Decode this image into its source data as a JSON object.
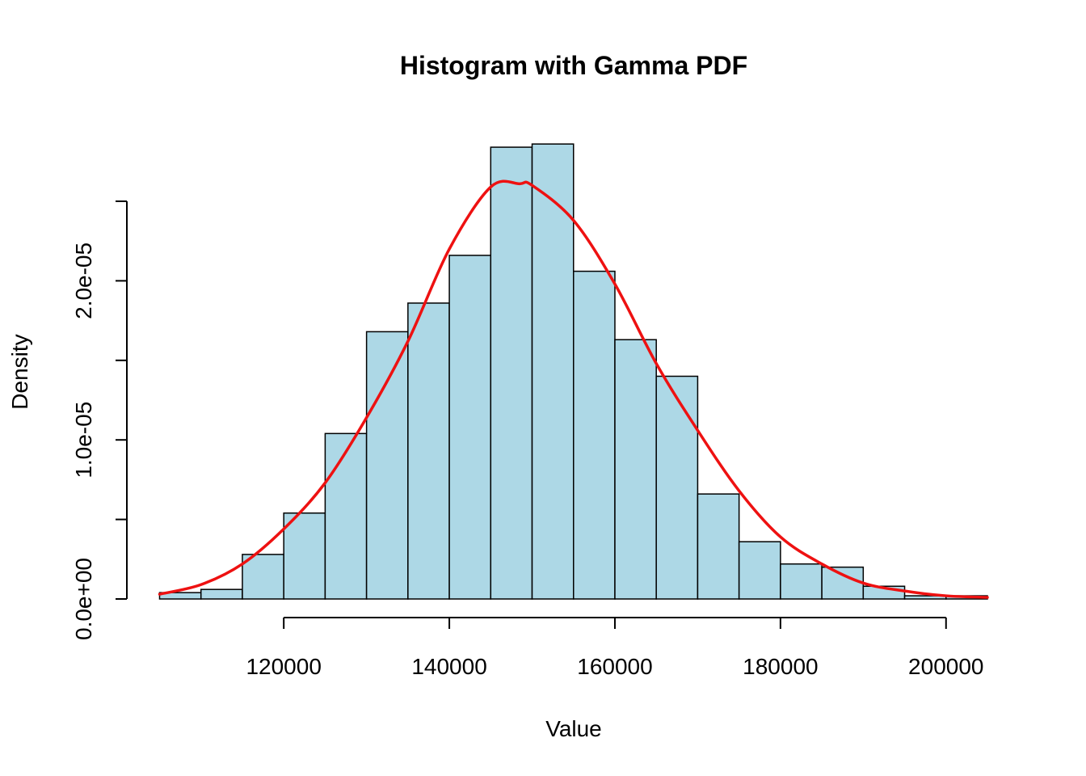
{
  "chart_data": {
    "type": "bar",
    "title": "Histogram with Gamma PDF",
    "xlabel": "Value",
    "ylabel": "Density",
    "bin_width": 5000,
    "bin_starts": [
      105000,
      110000,
      115000,
      120000,
      125000,
      130000,
      135000,
      140000,
      145000,
      150000,
      155000,
      160000,
      165000,
      170000,
      175000,
      180000,
      185000,
      190000,
      195000,
      200000
    ],
    "values": [
      4e-07,
      6e-07,
      2.8e-06,
      5.4e-06,
      1.04e-05,
      1.68e-05,
      1.86e-05,
      2.16e-05,
      2.84e-05,
      2.86e-05,
      2.06e-05,
      1.63e-05,
      1.4e-05,
      6.6e-06,
      3.6e-06,
      2.2e-06,
      2e-06,
      8e-07,
      2e-07,
      2e-07
    ],
    "xlim": [
      105000,
      205000
    ],
    "ylim": [
      0,
      2.5e-05
    ],
    "x_ticks": [
      120000,
      140000,
      160000,
      180000,
      200000
    ],
    "x_tick_labels": [
      "120000",
      "140000",
      "160000",
      "180000",
      "200000"
    ],
    "y_ticks": [
      0,
      5e-06,
      1e-05,
      1.5e-05,
      2e-05,
      2.5e-05
    ],
    "y_tick_labels": [
      "0.0e+00",
      "",
      "1.0e-05",
      "",
      "2.0e-05",
      ""
    ],
    "series": [
      {
        "type": "line",
        "x": [
          105000,
          110000,
          115000,
          120000,
          125000,
          130000,
          135000,
          140000,
          145000,
          148500,
          150000,
          155000,
          160000,
          165000,
          170000,
          175000,
          180000,
          185000,
          190000,
          195000,
          200000,
          205000
        ],
        "values": [
          3e-07,
          9e-07,
          2.2e-06,
          4.4e-06,
          7.3e-06,
          1.14e-05,
          1.62e-05,
          2.2e-05,
          2.59e-05,
          2.61e-05,
          2.6e-05,
          2.38e-05,
          1.98e-05,
          1.48e-05,
          1.06e-05,
          6.8e-06,
          3.9e-06,
          2.2e-06,
          1e-06,
          5e-07,
          2e-07,
          1e-07
        ]
      }
    ],
    "colors": {
      "bar_fill": "#add8e6",
      "bar_stroke": "#000000",
      "curve": "#ee1111"
    }
  }
}
